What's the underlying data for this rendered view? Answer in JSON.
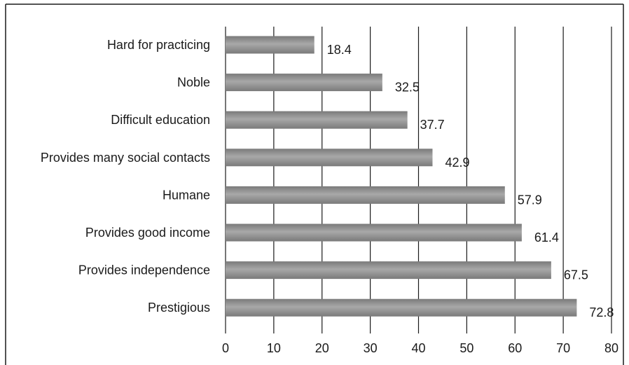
{
  "chart_data": {
    "type": "bar",
    "orientation": "horizontal",
    "categories": [
      "Hard for practicing",
      "Noble",
      "Difficult education",
      "Provides many social contacts",
      "Humane",
      "Provides good income",
      "Provides independence",
      "Prestigious"
    ],
    "values": [
      18.4,
      32.5,
      37.7,
      42.9,
      57.9,
      61.4,
      67.5,
      72.8
    ],
    "value_labels": [
      "18.4",
      "32.5",
      "37.7",
      "42.9",
      "57.9",
      "61.4",
      "67.5",
      "72.8"
    ],
    "x_ticks": [
      "0",
      "10",
      "20",
      "30",
      "40",
      "50",
      "60",
      "70",
      "80"
    ],
    "xlim": [
      0,
      80
    ],
    "title": "",
    "xlabel": "",
    "ylabel": "",
    "grid": "vertical",
    "legend": "none",
    "bar_color": "#7a7a7a",
    "bar_highlight": "#a8a8a8",
    "grid_color": "#1a1a1a",
    "border_color": "#1a1a1a"
  }
}
